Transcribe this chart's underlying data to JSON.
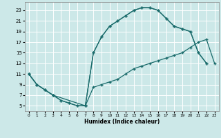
{
  "xlabel": "Humidex (Indice chaleur)",
  "bg_color": "#cce8e8",
  "line_color": "#1a6b6b",
  "grid_color": "#ffffff",
  "xlim": [
    -0.5,
    23.5
  ],
  "ylim": [
    4.0,
    24.5
  ],
  "yticks": [
    5,
    7,
    9,
    11,
    13,
    15,
    17,
    19,
    21,
    23
  ],
  "curve1_x": [
    0,
    1,
    2,
    3,
    4,
    5,
    6,
    7,
    8,
    9,
    10,
    11,
    12,
    13,
    14,
    15,
    16,
    17,
    18,
    19,
    20,
    21,
    22
  ],
  "curve1_y": [
    11,
    9,
    8,
    7,
    6,
    5.5,
    5,
    5,
    15,
    18,
    20,
    21,
    22,
    23,
    23.5,
    23.5,
    23,
    21.5,
    20,
    19.5,
    19,
    15,
    13
  ],
  "curve2_x": [
    0,
    1,
    2,
    3,
    4,
    5,
    6,
    7,
    8,
    9,
    10,
    11,
    12,
    13,
    14,
    15,
    16,
    17,
    18,
    19,
    20,
    21,
    22,
    23
  ],
  "curve2_y": [
    11,
    9,
    8,
    7,
    6,
    5.5,
    5,
    5,
    8.5,
    9,
    9.5,
    10,
    11,
    12,
    12.5,
    13,
    13.5,
    14,
    14.5,
    15,
    16,
    17,
    17.5,
    13
  ],
  "curve3_x": [
    0,
    1,
    2,
    3,
    7,
    8,
    9,
    10,
    11,
    12,
    13,
    14,
    15,
    16,
    17,
    18,
    19,
    20,
    21,
    22
  ],
  "curve3_y": [
    11,
    9,
    8,
    7,
    5,
    15,
    18,
    20,
    21,
    22,
    23,
    23.5,
    23.5,
    23,
    21.5,
    20,
    19.5,
    19,
    15,
    13
  ]
}
